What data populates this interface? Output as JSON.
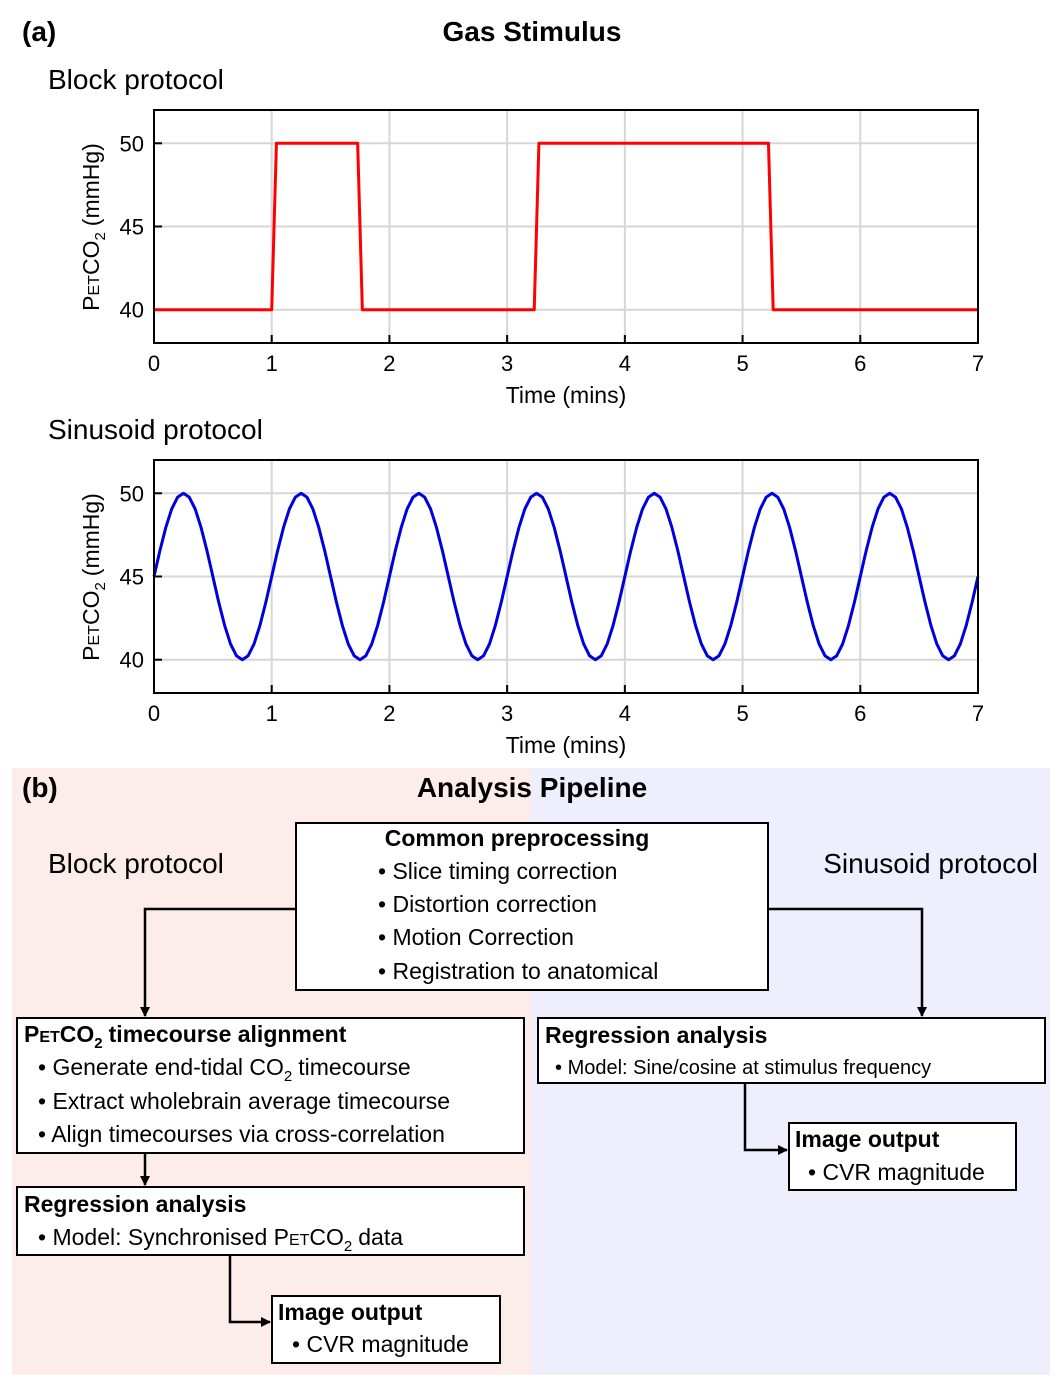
{
  "panel_a": {
    "label": "(a)",
    "title": "Gas Stimulus"
  },
  "chart_data": [
    {
      "type": "line",
      "title": "Block protocol",
      "xlabel": "Time (mins)",
      "ylabel": [
        "P",
        "ET",
        "CO",
        "2",
        "(mmHg)"
      ],
      "x": [
        0,
        1,
        1.04,
        1.73,
        1.77,
        3.23,
        3.27,
        5.22,
        5.26,
        7
      ],
      "values": [
        40,
        40,
        50,
        50,
        40,
        40,
        50,
        50,
        40,
        40
      ],
      "color": "#ff0000",
      "xlim": [
        0,
        7
      ],
      "xticks": [
        0,
        1,
        2,
        3,
        4,
        5,
        6,
        7
      ],
      "ylim": [
        38,
        52
      ],
      "yticks": [
        40,
        45,
        50
      ],
      "grid": true
    },
    {
      "type": "line",
      "title": "Sinusoid protocol",
      "xlabel": "Time (mins)",
      "ylabel": [
        "P",
        "ET",
        "CO",
        "2",
        "(mmHg)"
      ],
      "x": [
        0,
        0.05,
        0.1,
        0.15,
        0.2,
        0.25,
        0.3,
        0.35,
        0.4,
        0.45,
        0.5,
        0.55,
        0.6,
        0.65,
        0.7,
        0.75,
        0.8,
        0.85,
        0.9,
        0.95,
        1,
        1.05,
        1.1,
        1.15,
        1.2,
        1.25,
        1.3,
        1.35,
        1.4,
        1.45,
        1.5,
        1.55,
        1.6,
        1.65,
        1.7,
        1.75,
        1.8,
        1.85,
        1.9,
        1.95,
        2,
        2.05,
        2.1,
        2.15,
        2.2,
        2.25,
        2.3,
        2.35,
        2.4,
        2.45,
        2.5,
        2.55,
        2.6,
        2.65,
        2.7,
        2.75,
        2.8,
        2.85,
        2.9,
        2.95,
        3,
        3.05,
        3.1,
        3.15,
        3.2,
        3.25,
        3.3,
        3.35,
        3.4,
        3.45,
        3.5,
        3.55,
        3.6,
        3.65,
        3.7,
        3.75,
        3.8,
        3.85,
        3.9,
        3.95,
        4,
        4.05,
        4.1,
        4.15,
        4.2,
        4.25,
        4.3,
        4.35,
        4.4,
        4.45,
        4.5,
        4.55,
        4.6,
        4.65,
        4.7,
        4.75,
        4.8,
        4.85,
        4.9,
        4.95,
        5,
        5.05,
        5.1,
        5.15,
        5.2,
        5.25,
        5.3,
        5.35,
        5.4,
        5.45,
        5.5,
        5.55,
        5.6,
        5.65,
        5.7,
        5.75,
        5.8,
        5.85,
        5.9,
        5.95,
        6,
        6.05,
        6.1,
        6.15,
        6.2,
        6.25,
        6.3,
        6.35,
        6.4,
        6.45,
        6.5,
        6.55,
        6.6,
        6.65,
        6.7,
        6.75,
        6.8,
        6.85,
        6.9,
        6.95,
        7
      ],
      "values": [
        45,
        46.55,
        47.94,
        49.05,
        49.76,
        50,
        49.76,
        49.05,
        47.94,
        46.55,
        45,
        43.45,
        42.06,
        40.95,
        40.24,
        40,
        40.24,
        40.95,
        42.06,
        43.45,
        45,
        46.55,
        47.94,
        49.05,
        49.76,
        50,
        49.76,
        49.05,
        47.94,
        46.55,
        45,
        43.45,
        42.06,
        40.95,
        40.24,
        40,
        40.24,
        40.95,
        42.06,
        43.45,
        45,
        46.55,
        47.94,
        49.05,
        49.76,
        50,
        49.76,
        49.05,
        47.94,
        46.55,
        45,
        43.45,
        42.06,
        40.95,
        40.24,
        40,
        40.24,
        40.95,
        42.06,
        43.45,
        45,
        46.55,
        47.94,
        49.05,
        49.76,
        50,
        49.76,
        49.05,
        47.94,
        46.55,
        45,
        43.45,
        42.06,
        40.95,
        40.24,
        40,
        40.24,
        40.95,
        42.06,
        43.45,
        45,
        46.55,
        47.94,
        49.05,
        49.76,
        50,
        49.76,
        49.05,
        47.94,
        46.55,
        45,
        43.45,
        42.06,
        40.95,
        40.24,
        40,
        40.24,
        40.95,
        42.06,
        43.45,
        45,
        46.55,
        47.94,
        49.05,
        49.76,
        50,
        49.76,
        49.05,
        47.94,
        46.55,
        45,
        43.45,
        42.06,
        40.95,
        40.24,
        40,
        40.24,
        40.95,
        42.06,
        43.45,
        45,
        46.55,
        47.94,
        49.05,
        49.76,
        50,
        49.76,
        49.05,
        47.94,
        46.55,
        45,
        43.45,
        42.06,
        40.95,
        40.24,
        40,
        40.24,
        40.95,
        42.06,
        43.45,
        45
      ],
      "color": "#0000dd",
      "xlim": [
        0,
        7
      ],
      "xticks": [
        0,
        1,
        2,
        3,
        4,
        5,
        6,
        7
      ],
      "ylim": [
        38,
        52
      ],
      "yticks": [
        40,
        45,
        50
      ],
      "grid": true
    }
  ],
  "panel_b": {
    "label": "(b)",
    "title": "Analysis Pipeline",
    "block_label": "Block protocol",
    "sinusoid_label": "Sinusoid protocol",
    "common": {
      "title": "Common preprocessing",
      "items": [
        "Slice timing correction",
        "Distortion correction",
        "Motion Correction",
        "Registration to anatomical"
      ]
    },
    "alignment": {
      "title": [
        "P",
        "ET",
        "CO",
        "2",
        "timecourse alignment"
      ],
      "items": [
        [
          "Generate end-tidal CO",
          "2",
          "timecourse"
        ],
        [
          "Extract wholebrain average timecourse"
        ],
        [
          "Align timecourses via cross-correlation"
        ]
      ]
    },
    "block_regression": {
      "title": "Regression analysis",
      "item": [
        "Model: Synchronised P",
        "ET",
        "CO",
        "2",
        "data"
      ]
    },
    "block_output": {
      "title": "Image output",
      "item": "CVR magnitude"
    },
    "sine_regression": {
      "title": "Regression analysis",
      "item": "Model: Sine/cosine at stimulus frequency"
    },
    "sine_output": {
      "title": "Image output",
      "item": "CVR magnitude"
    }
  }
}
